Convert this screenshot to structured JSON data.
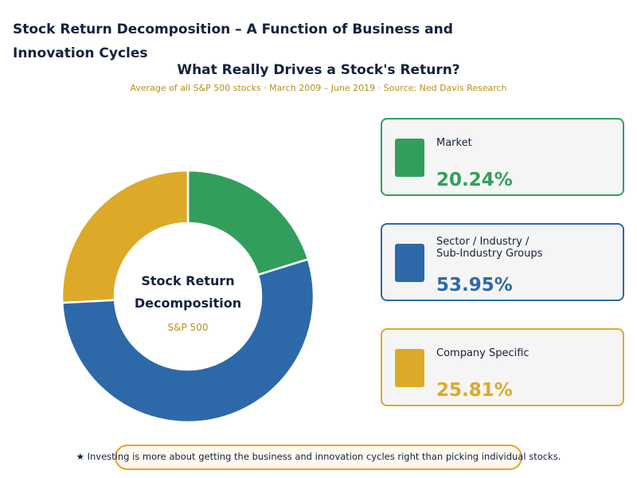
{
  "page_title": "Stock Return Decomposition – A Function of Business and Innovation Cycles",
  "chart_data": {
    "type": "pie",
    "title": "What Really Drives a Stock's Return?",
    "subtitle": "Average of all S&P 500 stocks  ·  March 2009 – June 2019  ·  Source: Ned Davis Research",
    "center_label": [
      "Stock Return",
      "Decomposition"
    ],
    "center_sublabel": "S&P 500",
    "slices": [
      {
        "label": "Market",
        "value": 20.24,
        "display": "20.24%",
        "color": "#329e5c"
      },
      {
        "label": "Sector / Industry /\nSub-Industry Groups",
        "value": 53.95,
        "display": "53.95%",
        "color": "#2d69a8"
      },
      {
        "label": "Company Specific",
        "value": 25.81,
        "display": "25.81%",
        "color": "#dcaa28"
      }
    ]
  },
  "footnote": "★  Investing is more about getting the business and innovation cycles right than picking individual stocks."
}
